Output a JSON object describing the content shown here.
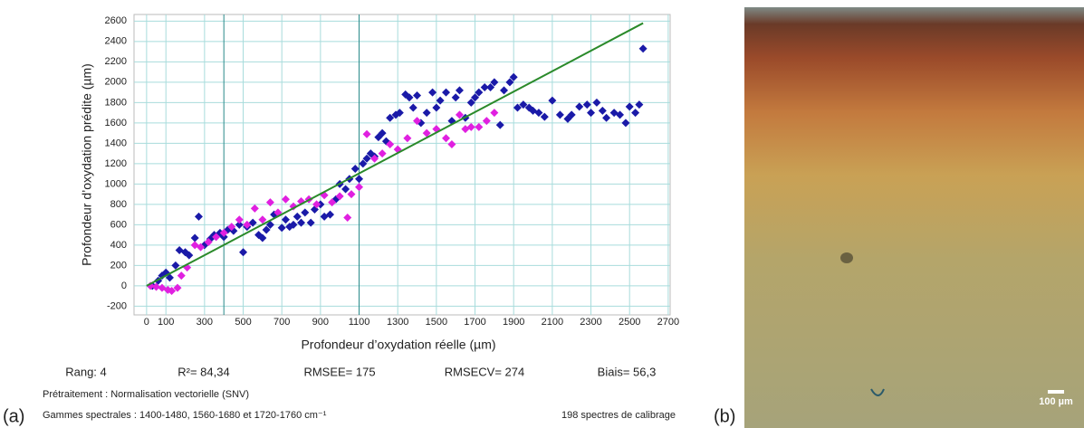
{
  "chart_data": {
    "type": "scatter",
    "xlabel": "Profondeur d’oxydation réelle (µm)",
    "ylabel": "Profondeur d’oxydation prédite (µm)",
    "xlim": [
      -65,
      2710
    ],
    "ylim": [
      -285,
      2665
    ],
    "xticks": [
      0,
      100,
      300,
      500,
      700,
      900,
      1100,
      1300,
      1500,
      1700,
      1900,
      2100,
      2300,
      2500,
      2700
    ],
    "yticks": [
      -200,
      0,
      200,
      400,
      600,
      800,
      1000,
      1200,
      1400,
      1600,
      1800,
      2000,
      2200,
      2400,
      2600
    ],
    "grid": true,
    "ref_lines_x": [
      400,
      1100
    ],
    "series": [
      {
        "color": "#1a1aa8",
        "x": [
          30,
          60,
          80,
          100,
          120,
          150,
          170,
          200,
          220,
          250,
          270,
          300,
          330,
          350,
          380,
          400,
          420,
          450,
          480,
          500,
          520,
          550,
          580,
          600,
          620,
          640,
          660,
          700,
          720,
          740,
          760,
          780,
          800,
          820,
          850,
          870,
          900,
          920,
          950,
          980,
          1000,
          1030,
          1050,
          1080,
          1100,
          1120,
          1140,
          1160,
          1180,
          1200,
          1220,
          1240,
          1260,
          1290,
          1310,
          1340,
          1360,
          1380,
          1400,
          1420,
          1450,
          1480,
          1500,
          1520,
          1550,
          1580,
          1600,
          1620,
          1650,
          1680,
          1700,
          1720,
          1750,
          1780,
          1800,
          1830,
          1850,
          1880,
          1900,
          1920,
          1950,
          1980,
          2000,
          2030,
          2060,
          2100,
          2140,
          2180,
          2200,
          2240,
          2280,
          2300,
          2330,
          2360,
          2380,
          2420,
          2450,
          2480,
          2500,
          2530,
          2550,
          2570
        ],
        "values": [
          0,
          50,
          100,
          130,
          80,
          200,
          350,
          330,
          300,
          470,
          680,
          400,
          460,
          500,
          520,
          480,
          550,
          540,
          600,
          330,
          580,
          620,
          500,
          470,
          550,
          600,
          700,
          570,
          650,
          580,
          600,
          680,
          620,
          720,
          620,
          750,
          800,
          680,
          700,
          850,
          1000,
          950,
          1050,
          1150,
          1050,
          1200,
          1250,
          1300,
          1270,
          1460,
          1500,
          1420,
          1650,
          1680,
          1700,
          1880,
          1850,
          1750,
          1870,
          1600,
          1700,
          1900,
          1750,
          1820,
          1900,
          1620,
          1850,
          1920,
          1650,
          1800,
          1850,
          1900,
          1950,
          1950,
          2000,
          1580,
          1920,
          2000,
          2050,
          1750,
          1780,
          1750,
          1720,
          1700,
          1660,
          1820,
          1680,
          1640,
          1680,
          1760,
          1780,
          1700,
          1800,
          1720,
          1650,
          1700,
          1680,
          1600,
          1760,
          1700,
          1780,
          2330
        ]
      },
      {
        "color": "#e020e0",
        "x": [
          20,
          50,
          80,
          110,
          130,
          160,
          180,
          210,
          250,
          280,
          320,
          360,
          400,
          440,
          480,
          520,
          560,
          600,
          640,
          680,
          720,
          760,
          800,
          840,
          880,
          920,
          960,
          1000,
          1040,
          1060,
          1100,
          1140,
          1180,
          1220,
          1260,
          1300,
          1350,
          1400,
          1450,
          1500,
          1550,
          1580,
          1620,
          1650,
          1680,
          1720,
          1760,
          1800
        ],
        "values": [
          0,
          -10,
          -20,
          -40,
          -50,
          -20,
          100,
          180,
          400,
          380,
          430,
          480,
          520,
          580,
          650,
          600,
          760,
          650,
          820,
          720,
          850,
          780,
          830,
          850,
          800,
          890,
          820,
          880,
          670,
          900,
          970,
          1490,
          1250,
          1300,
          1390,
          1340,
          1450,
          1620,
          1500,
          1540,
          1450,
          1390,
          1680,
          1540,
          1560,
          1560,
          1620,
          1700
        ]
      }
    ],
    "fit_line": {
      "color": "#2a8a2a",
      "x": [
        0,
        2570
      ],
      "values": [
        0,
        2580
      ]
    }
  },
  "stats": [
    "Rang: 4",
    "R²= 84,34",
    "RMSEE= 175",
    "RMSECV= 274",
    "Biais= 56,3"
  ],
  "notes": [
    "Prétraitement : Normalisation vectorielle (SNV)",
    "Gammes spectrales : 1400-1480, 1560-1680 et 1720-1760 cm⁻¹",
    "198 spectres de calibrage"
  ],
  "panel_labels": [
    "(a)",
    "(b)"
  ],
  "scale_bar": "100 µm"
}
